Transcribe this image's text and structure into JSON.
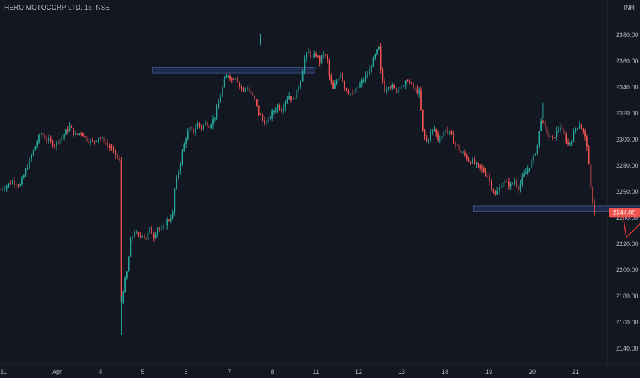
{
  "header": {
    "symbol": "HERO MOTOCORP LTD",
    "interval": "15",
    "exchange": "NSE"
  },
  "price_axis": {
    "currency": "INR",
    "last_price_label": "2244.00"
  },
  "colors": {
    "background": "#131722",
    "up": "#26a69a",
    "down": "#ef5350",
    "axis_text": "#b2b5be",
    "zone_fill": "#1f2a4a",
    "zone_border": "#3b4b7a",
    "last_price_bg": "#ef5350",
    "projection": "#e53935"
  },
  "chart_data": {
    "type": "candlestick",
    "title": "HERO MOTOCORP LTD, 15, NSE",
    "ylim": [
      2130,
      2410
    ],
    "y_ticks": [
      2140,
      2160,
      2180,
      2200,
      2220,
      2240,
      2260,
      2280,
      2300,
      2320,
      2340,
      2360,
      2380
    ],
    "x_ticks": [
      "31",
      "Apr",
      "4",
      "5",
      "6",
      "7",
      "8",
      "11",
      "12",
      "13",
      "18",
      "19",
      "20",
      "21"
    ],
    "grid": false,
    "series": [
      {
        "path_points": [
          [
            0,
            2262
          ],
          [
            6,
            2268
          ],
          [
            10,
            2265
          ],
          [
            14,
            2280
          ],
          [
            18,
            2295
          ],
          [
            21,
            2305
          ],
          [
            24,
            2300
          ],
          [
            28,
            2296
          ],
          [
            32,
            2302
          ],
          [
            36,
            2310
          ],
          [
            39,
            2303
          ],
          [
            42,
            2306
          ],
          [
            45,
            2300
          ],
          [
            48,
            2298
          ],
          [
            51,
            2302
          ],
          [
            54,
            2299
          ],
          [
            57,
            2294
          ],
          [
            60,
            2288
          ],
          [
            62,
            2283
          ],
          [
            63,
            2176
          ],
          [
            64,
            2185
          ],
          [
            66,
            2198
          ],
          [
            68,
            2222
          ],
          [
            70,
            2230
          ],
          [
            72,
            2225
          ],
          [
            74,
            2228
          ],
          [
            76,
            2224
          ],
          [
            78,
            2231
          ],
          [
            80,
            2226
          ],
          [
            82,
            2233
          ],
          [
            84,
            2230
          ],
          [
            86,
            2236
          ],
          [
            88,
            2239
          ],
          [
            90,
            2243
          ],
          [
            91,
            2262
          ],
          [
            93,
            2276
          ],
          [
            95,
            2290
          ],
          [
            97,
            2302
          ],
          [
            99,
            2308
          ],
          [
            101,
            2306
          ],
          [
            103,
            2312
          ],
          [
            105,
            2309
          ],
          [
            107,
            2313
          ],
          [
            109,
            2311
          ],
          [
            111,
            2315
          ],
          [
            113,
            2322
          ],
          [
            115,
            2334
          ],
          [
            117,
            2345
          ],
          [
            119,
            2350
          ],
          [
            121,
            2346
          ],
          [
            123,
            2349
          ],
          [
            125,
            2341
          ],
          [
            127,
            2338
          ],
          [
            129,
            2340
          ],
          [
            131,
            2335
          ],
          [
            133,
            2330
          ],
          [
            135,
            2320
          ],
          [
            137,
            2315
          ],
          [
            139,
            2312
          ],
          [
            141,
            2318
          ],
          [
            143,
            2322
          ],
          [
            145,
            2326
          ],
          [
            147,
            2323
          ],
          [
            149,
            2330
          ],
          [
            151,
            2334
          ],
          [
            153,
            2330
          ],
          [
            155,
            2336
          ],
          [
            157,
            2346
          ],
          [
            159,
            2362
          ],
          [
            161,
            2367
          ],
          [
            163,
            2362
          ],
          [
            165,
            2365
          ],
          [
            167,
            2360
          ],
          [
            169,
            2366
          ],
          [
            171,
            2360
          ],
          [
            172,
            2348
          ],
          [
            174,
            2338
          ],
          [
            176,
            2345
          ],
          [
            178,
            2352
          ],
          [
            180,
            2340
          ],
          [
            182,
            2337
          ],
          [
            184,
            2334
          ],
          [
            186,
            2338
          ],
          [
            188,
            2342
          ],
          [
            190,
            2346
          ],
          [
            192,
            2350
          ],
          [
            194,
            2357
          ],
          [
            196,
            2364
          ],
          [
            198,
            2370
          ],
          [
            199,
            2352
          ],
          [
            201,
            2338
          ],
          [
            203,
            2342
          ],
          [
            205,
            2340
          ],
          [
            207,
            2337
          ],
          [
            209,
            2342
          ],
          [
            211,
            2340
          ],
          [
            213,
            2346
          ],
          [
            215,
            2341
          ],
          [
            217,
            2338
          ],
          [
            219,
            2336
          ],
          [
            220,
            2322
          ],
          [
            221,
            2306
          ],
          [
            223,
            2298
          ],
          [
            225,
            2305
          ],
          [
            227,
            2308
          ],
          [
            229,
            2301
          ],
          [
            231,
            2303
          ],
          [
            233,
            2308
          ],
          [
            235,
            2305
          ],
          [
            237,
            2299
          ],
          [
            239,
            2295
          ],
          [
            241,
            2290
          ],
          [
            243,
            2288
          ],
          [
            245,
            2284
          ],
          [
            247,
            2283
          ],
          [
            249,
            2280
          ],
          [
            251,
            2278
          ],
          [
            253,
            2276
          ],
          [
            255,
            2272
          ],
          [
            257,
            2264
          ],
          [
            259,
            2257
          ],
          [
            261,
            2263
          ],
          [
            263,
            2268
          ],
          [
            265,
            2266
          ],
          [
            267,
            2265
          ],
          [
            269,
            2268
          ],
          [
            271,
            2263
          ],
          [
            273,
            2270
          ],
          [
            275,
            2275
          ],
          [
            277,
            2280
          ],
          [
            279,
            2286
          ],
          [
            281,
            2296
          ],
          [
            283,
            2316
          ],
          [
            285,
            2308
          ],
          [
            287,
            2302
          ],
          [
            289,
            2300
          ],
          [
            291,
            2306
          ],
          [
            293,
            2310
          ],
          [
            295,
            2303
          ],
          [
            297,
            2296
          ],
          [
            299,
            2300
          ],
          [
            301,
            2309
          ],
          [
            303,
            2312
          ],
          [
            305,
            2306
          ],
          [
            307,
            2296
          ],
          [
            309,
            2262
          ],
          [
            311,
            2244
          ]
        ]
      }
    ],
    "zones": [
      {
        "x1": 80,
        "x2": 165,
        "y_low": 2351,
        "y_high": 2355
      },
      {
        "x1": 248,
        "x2": 356,
        "y_low": 2245,
        "y_high": 2249
      }
    ],
    "projection_path": [
      [
        326,
        2245
      ],
      [
        328,
        2225
      ],
      [
        342,
        2245
      ],
      [
        350,
        2197
      ]
    ]
  }
}
